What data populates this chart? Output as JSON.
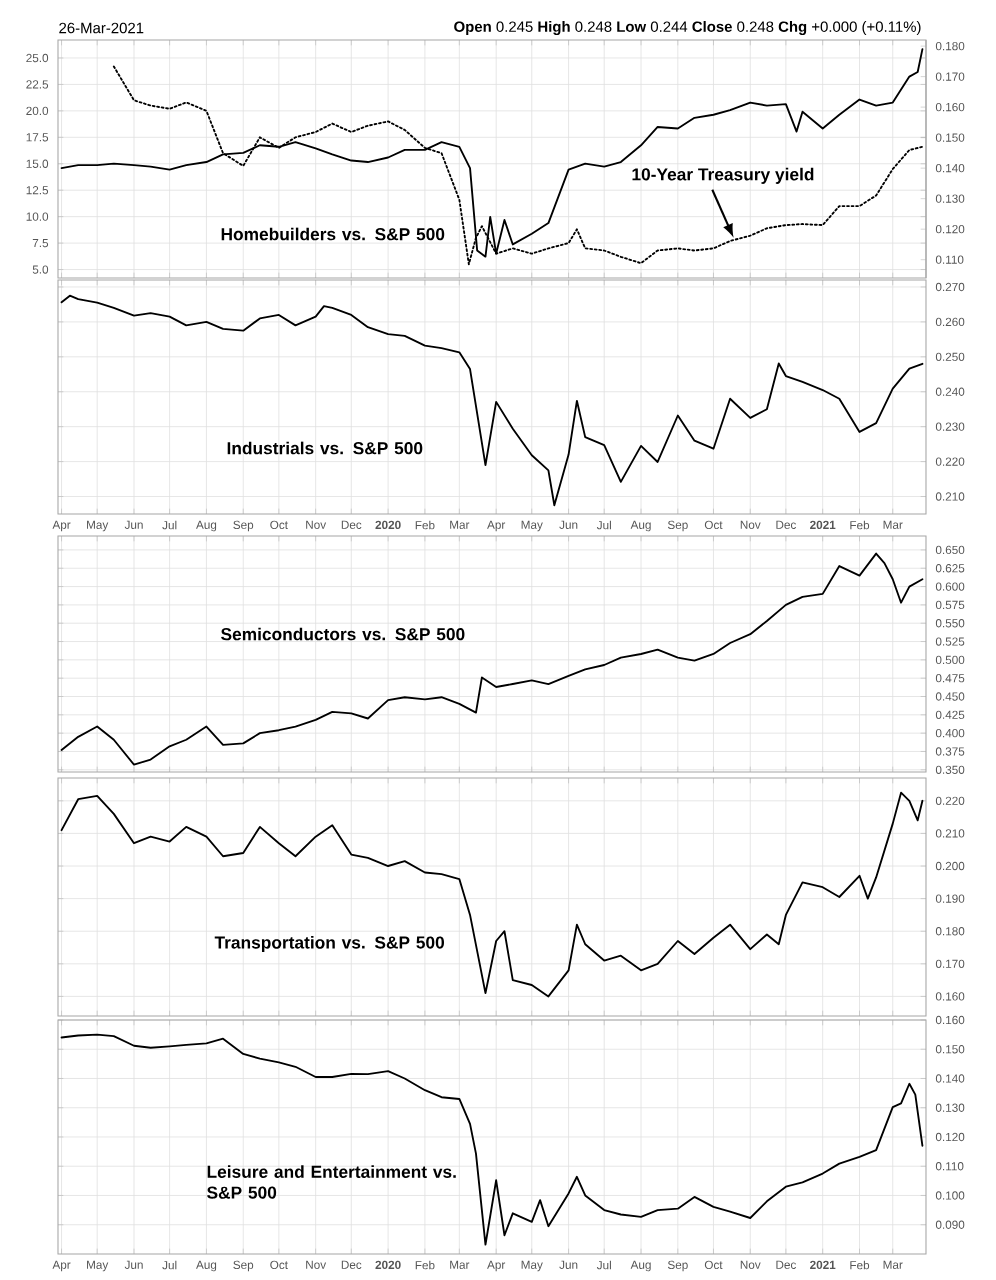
{
  "chart_data": [
    {
      "type": "line",
      "grid": true,
      "tick_labels": "y",
      "marker": "none",
      "annotations": [
        "26-Mar-2021",
        "**Open** 0.245 **High** 0.248 **Low** 0.244 **Close** 0.248 **Chg** +0.000 (+0.11%)",
        "Homebuilders vs. S&P 500",
        {
          "text": "10-Year Treasury yield",
          "x": "2020-10-18",
          "y": 8.0
        }
      ],
      "xlim": [
        "2019-03-29",
        "2021-03-29"
      ],
      "xticks": [
        {
          "value": "2019-04-01",
          "label": null
        },
        {
          "value": "2019-05-01",
          "label": null
        },
        {
          "value": "2019-06-01",
          "label": null
        },
        {
          "value": "2019-07-01",
          "label": null
        },
        {
          "value": "2019-08-01",
          "label": null
        },
        {
          "value": "2019-09-01",
          "label": null
        },
        {
          "value": "2019-10-01",
          "label": null
        },
        {
          "value": "2019-11-01",
          "label": null
        },
        {
          "value": "2019-12-01",
          "label": null
        },
        {
          "value": "2020-01-01",
          "label": null
        },
        {
          "value": "2020-02-01",
          "label": null
        },
        {
          "value": "2020-03-01",
          "label": null
        },
        {
          "value": "2020-04-01",
          "label": null
        },
        {
          "value": "2020-05-01",
          "label": null
        },
        {
          "value": "2020-06-01",
          "label": null
        },
        {
          "value": "2020-07-01",
          "label": null
        },
        {
          "value": "2020-08-01",
          "label": null
        },
        {
          "value": "2020-09-01",
          "label": null
        },
        {
          "value": "2020-10-01",
          "label": null
        },
        {
          "value": "2020-11-01",
          "label": null
        },
        {
          "value": "2020-12-01",
          "label": null
        },
        {
          "value": "2021-01-01",
          "label": null
        },
        {
          "value": "2021-02-01",
          "label": null
        },
        {
          "value": "2021-03-01",
          "label": null
        }
      ],
      "ylim": [
        4.2,
        26.7
      ],
      "yticks": [
        {
          "value": 5,
          "label": "5.0"
        },
        {
          "value": 7.5,
          "label": "7.5"
        },
        {
          "value": 10,
          "label": "10.0"
        },
        {
          "value": 12.5,
          "label": "12.5"
        },
        {
          "value": 15,
          "label": "15.0"
        },
        {
          "value": 17.5,
          "label": "17.5"
        },
        {
          "value": 20,
          "label": "20.0"
        },
        {
          "value": 22.5,
          "label": "22.5"
        },
        {
          "value": 25,
          "label": "25.0"
        }
      ],
      "y2lim": [
        0.104,
        0.182
      ],
      "y2ticks": [
        {
          "value": 0.11,
          "label": "0.110"
        },
        {
          "value": 0.12,
          "label": "0.120"
        },
        {
          "value": 0.13,
          "label": "0.130"
        },
        {
          "value": 0.14,
          "label": "0.140"
        },
        {
          "value": 0.15,
          "label": "0.150"
        },
        {
          "value": 0.16,
          "label": "0.160"
        },
        {
          "value": 0.17,
          "label": "0.170"
        },
        {
          "value": 0.18,
          "label": "0.180"
        }
      ],
      "series": [
        {
          "color": "#000000",
          "axis": "y2",
          "line_style": "solid",
          "x": [
            "2019-04-01",
            "2019-04-15",
            "2019-05-01",
            "2019-05-15",
            "2019-06-01",
            "2019-06-15",
            "2019-07-01",
            "2019-07-15",
            "2019-08-01",
            "2019-08-15",
            "2019-09-01",
            "2019-09-15",
            "2019-10-01",
            "2019-10-15",
            "2019-11-01",
            "2019-11-15",
            "2019-12-01",
            "2019-12-15",
            "2020-01-01",
            "2020-01-15",
            "2020-02-01",
            "2020-02-15",
            "2020-03-01",
            "2020-03-10",
            "2020-03-16",
            "2020-03-23",
            "2020-03-27",
            "2020-04-01",
            "2020-04-08",
            "2020-04-15",
            "2020-05-01",
            "2020-05-15",
            "2020-06-01",
            "2020-06-15",
            "2020-07-01",
            "2020-07-15",
            "2020-08-01",
            "2020-08-15",
            "2020-09-01",
            "2020-09-15",
            "2020-10-01",
            "2020-10-15",
            "2020-11-01",
            "2020-11-15",
            "2020-12-01",
            "2020-12-10",
            "2020-12-15",
            "2021-01-01",
            "2021-01-15",
            "2021-02-01",
            "2021-02-15",
            "2021-03-01",
            "2021-03-15",
            "2021-03-22",
            "2021-03-26"
          ],
          "values": [
            0.14,
            0.141,
            0.141,
            0.1415,
            0.141,
            0.1405,
            0.1395,
            0.141,
            0.142,
            0.1445,
            0.145,
            0.1475,
            0.147,
            0.1485,
            0.1465,
            0.1445,
            0.1425,
            0.142,
            0.1435,
            0.146,
            0.146,
            0.1485,
            0.147,
            0.14,
            0.113,
            0.111,
            0.124,
            0.112,
            0.123,
            0.115,
            0.1185,
            0.122,
            0.1395,
            0.1415,
            0.1405,
            0.142,
            0.1475,
            0.1535,
            0.153,
            0.1565,
            0.1575,
            0.159,
            0.1615,
            0.1605,
            0.161,
            0.152,
            0.1585,
            0.153,
            0.1575,
            0.1625,
            0.1605,
            0.1615,
            0.17,
            0.1715,
            0.179
          ]
        },
        {
          "color": "#000000",
          "line_style": "dotted",
          "x": [
            "2019-05-15",
            "2019-06-01",
            "2019-06-15",
            "2019-07-01",
            "2019-07-15",
            "2019-08-01",
            "2019-08-15",
            "2019-09-01",
            "2019-09-15",
            "2019-10-01",
            "2019-10-15",
            "2019-11-01",
            "2019-11-15",
            "2019-12-01",
            "2019-12-15",
            "2020-01-01",
            "2020-01-15",
            "2020-02-01",
            "2020-02-15",
            "2020-03-01",
            "2020-03-09",
            "2020-03-15",
            "2020-03-20",
            "2020-04-01",
            "2020-04-15",
            "2020-05-01",
            "2020-05-15",
            "2020-06-01",
            "2020-06-08",
            "2020-06-15",
            "2020-07-01",
            "2020-07-15",
            "2020-08-01",
            "2020-08-15",
            "2020-09-01",
            "2020-09-15",
            "2020-10-01",
            "2020-10-15",
            "2020-11-01",
            "2020-11-15",
            "2020-12-01",
            "2020-12-15",
            "2021-01-01",
            "2021-01-15",
            "2021-02-01",
            "2021-02-15",
            "2021-03-01",
            "2021-03-15",
            "2021-03-26"
          ],
          "values": [
            24.2,
            21.0,
            20.5,
            20.2,
            20.8,
            20.0,
            16.0,
            14.8,
            17.5,
            16.5,
            17.5,
            18.0,
            18.8,
            18.0,
            18.6,
            19.0,
            18.2,
            16.5,
            16.0,
            11.6,
            5.5,
            8.0,
            9.1,
            6.5,
            7.0,
            6.5,
            7.0,
            7.5,
            8.8,
            7.0,
            6.8,
            6.2,
            5.6,
            6.8,
            7.0,
            6.8,
            7.0,
            7.7,
            8.2,
            8.9,
            9.2,
            9.3,
            9.2,
            11.0,
            11.0,
            12.0,
            14.5,
            16.3,
            16.6
          ]
        }
      ]
    },
    {
      "type": "line",
      "grid": true,
      "marker": "none",
      "annotations": [
        "Industrials vs. S&P 500"
      ],
      "xlim": [
        "2019-03-29",
        "2021-03-29"
      ],
      "xticks": [
        {
          "value": "2019-04-01",
          "label": "Apr"
        },
        {
          "value": "2019-05-01",
          "label": "May"
        },
        {
          "value": "2019-06-01",
          "label": "Jun"
        },
        {
          "value": "2019-07-01",
          "label": "Jul"
        },
        {
          "value": "2019-08-01",
          "label": "Aug"
        },
        {
          "value": "2019-09-01",
          "label": "Sep"
        },
        {
          "value": "2019-10-01",
          "label": "Oct"
        },
        {
          "value": "2019-11-01",
          "label": "Nov"
        },
        {
          "value": "2019-12-01",
          "label": "Dec"
        },
        {
          "value": "2020-01-01",
          "label": "2020"
        },
        {
          "value": "2020-02-01",
          "label": "Feb"
        },
        {
          "value": "2020-03-01",
          "label": "Mar"
        },
        {
          "value": "2020-04-01",
          "label": "Apr"
        },
        {
          "value": "2020-05-01",
          "label": "May"
        },
        {
          "value": "2020-06-01",
          "label": "Jun"
        },
        {
          "value": "2020-07-01",
          "label": "Jul"
        },
        {
          "value": "2020-08-01",
          "label": "Aug"
        },
        {
          "value": "2020-09-01",
          "label": "Sep"
        },
        {
          "value": "2020-10-01",
          "label": "Oct"
        },
        {
          "value": "2020-11-01",
          "label": "Nov"
        },
        {
          "value": "2020-12-01",
          "label": "Dec"
        },
        {
          "value": "2021-01-01",
          "label": "2021"
        },
        {
          "value": "2021-02-01",
          "label": "Feb"
        },
        {
          "value": "2021-03-01",
          "label": "Mar"
        }
      ],
      "ylim": [
        0.205,
        0.272
      ],
      "yticks": [
        {
          "value": 0.21,
          "label": "0.210"
        },
        {
          "value": 0.22,
          "label": "0.220"
        },
        {
          "value": 0.23,
          "label": "0.230"
        },
        {
          "value": 0.24,
          "label": "0.240"
        },
        {
          "value": 0.25,
          "label": "0.250"
        },
        {
          "value": 0.26,
          "label": "0.260"
        },
        {
          "value": 0.27,
          "label": "0.270"
        }
      ],
      "series": [
        {
          "color": "#000000",
          "line_style": "solid",
          "x": [
            "2019-04-01",
            "2019-04-08",
            "2019-04-15",
            "2019-05-01",
            "2019-05-15",
            "2019-06-01",
            "2019-06-15",
            "2019-07-01",
            "2019-07-15",
            "2019-08-01",
            "2019-08-15",
            "2019-09-01",
            "2019-09-15",
            "2019-10-01",
            "2019-10-15",
            "2019-11-01",
            "2019-11-08",
            "2019-11-15",
            "2019-12-01",
            "2019-12-15",
            "2020-01-01",
            "2020-01-15",
            "2020-02-01",
            "2020-02-15",
            "2020-03-01",
            "2020-03-10",
            "2020-03-23",
            "2020-04-01",
            "2020-04-15",
            "2020-05-01",
            "2020-05-15",
            "2020-05-20",
            "2020-06-01",
            "2020-06-08",
            "2020-06-15",
            "2020-07-01",
            "2020-07-15",
            "2020-08-01",
            "2020-08-15",
            "2020-09-01",
            "2020-09-15",
            "2020-10-01",
            "2020-10-15",
            "2020-11-01",
            "2020-11-15",
            "2020-11-25",
            "2020-12-01",
            "2020-12-15",
            "2021-01-01",
            "2021-01-15",
            "2021-02-01",
            "2021-02-15",
            "2021-03-01",
            "2021-03-15",
            "2021-03-26"
          ],
          "values": [
            0.2656,
            0.2675,
            0.2665,
            0.2655,
            0.264,
            0.2618,
            0.2625,
            0.2615,
            0.259,
            0.26,
            0.258,
            0.2575,
            0.261,
            0.262,
            0.259,
            0.2615,
            0.2645,
            0.264,
            0.262,
            0.2585,
            0.2565,
            0.256,
            0.2532,
            0.2525,
            0.2513,
            0.2465,
            0.219,
            0.2371,
            0.2294,
            0.2218,
            0.2175,
            0.2075,
            0.222,
            0.2374,
            0.227,
            0.2247,
            0.2142,
            0.2245,
            0.2199,
            0.2332,
            0.226,
            0.2237,
            0.238,
            0.2325,
            0.235,
            0.2481,
            0.2445,
            0.2428,
            0.2405,
            0.238,
            0.2285,
            0.231,
            0.2409,
            0.2466,
            0.248
          ]
        }
      ]
    },
    {
      "type": "line",
      "grid": true,
      "tick_labels": "y",
      "marker": "none",
      "annotations": [
        "Semiconductors vs. S&P 500"
      ],
      "xlim": [
        "2019-03-29",
        "2021-03-29"
      ],
      "xticks": [
        {
          "value": "2019-04-01",
          "label": null
        },
        {
          "value": "2019-05-01",
          "label": null
        },
        {
          "value": "2019-06-01",
          "label": null
        },
        {
          "value": "2019-07-01",
          "label": null
        },
        {
          "value": "2019-08-01",
          "label": null
        },
        {
          "value": "2019-09-01",
          "label": null
        },
        {
          "value": "2019-10-01",
          "label": null
        },
        {
          "value": "2019-11-01",
          "label": null
        },
        {
          "value": "2019-12-01",
          "label": null
        },
        {
          "value": "2020-01-01",
          "label": null
        },
        {
          "value": "2020-02-01",
          "label": null
        },
        {
          "value": "2020-03-01",
          "label": null
        },
        {
          "value": "2020-04-01",
          "label": null
        },
        {
          "value": "2020-05-01",
          "label": null
        },
        {
          "value": "2020-06-01",
          "label": null
        },
        {
          "value": "2020-07-01",
          "label": null
        },
        {
          "value": "2020-08-01",
          "label": null
        },
        {
          "value": "2020-09-01",
          "label": null
        },
        {
          "value": "2020-10-01",
          "label": null
        },
        {
          "value": "2020-11-01",
          "label": null
        },
        {
          "value": "2020-12-01",
          "label": null
        },
        {
          "value": "2021-01-01",
          "label": null
        },
        {
          "value": "2021-02-01",
          "label": null
        },
        {
          "value": "2021-03-01",
          "label": null
        }
      ],
      "ylim": [
        0.347,
        0.669
      ],
      "yticks": [
        {
          "value": 0.35,
          "label": "0.350"
        },
        {
          "value": 0.375,
          "label": "0.375"
        },
        {
          "value": 0.4,
          "label": "0.400"
        },
        {
          "value": 0.425,
          "label": "0.425"
        },
        {
          "value": 0.45,
          "label": "0.450"
        },
        {
          "value": 0.475,
          "label": "0.475"
        },
        {
          "value": 0.5,
          "label": "0.500"
        },
        {
          "value": 0.525,
          "label": "0.525"
        },
        {
          "value": 0.55,
          "label": "0.550"
        },
        {
          "value": 0.575,
          "label": "0.575"
        },
        {
          "value": 0.6,
          "label": "0.600"
        },
        {
          "value": 0.625,
          "label": "0.625"
        },
        {
          "value": 0.65,
          "label": "0.650"
        }
      ],
      "series": [
        {
          "color": "#000000",
          "line_style": "solid",
          "x": [
            "2019-04-01",
            "2019-04-15",
            "2019-05-01",
            "2019-05-15",
            "2019-06-01",
            "2019-06-15",
            "2019-07-01",
            "2019-07-15",
            "2019-08-01",
            "2019-08-15",
            "2019-09-01",
            "2019-09-15",
            "2019-10-01",
            "2019-10-15",
            "2019-11-01",
            "2019-11-15",
            "2019-12-01",
            "2019-12-15",
            "2020-01-01",
            "2020-01-15",
            "2020-02-01",
            "2020-02-15",
            "2020-03-01",
            "2020-03-15",
            "2020-03-20",
            "2020-04-01",
            "2020-04-15",
            "2020-05-01",
            "2020-05-15",
            "2020-06-01",
            "2020-06-15",
            "2020-07-01",
            "2020-07-15",
            "2020-08-01",
            "2020-08-15",
            "2020-09-01",
            "2020-09-15",
            "2020-10-01",
            "2020-10-15",
            "2020-11-01",
            "2020-11-15",
            "2020-12-01",
            "2020-12-15",
            "2021-01-01",
            "2021-01-15",
            "2021-02-01",
            "2021-02-15",
            "2021-02-22",
            "2021-03-01",
            "2021-03-08",
            "2021-03-15",
            "2021-03-26"
          ],
          "values": [
            0.377,
            0.395,
            0.409,
            0.391,
            0.357,
            0.364,
            0.382,
            0.391,
            0.409,
            0.384,
            0.386,
            0.4,
            0.404,
            0.409,
            0.418,
            0.429,
            0.427,
            0.42,
            0.445,
            0.449,
            0.446,
            0.449,
            0.44,
            0.428,
            0.476,
            0.463,
            0.467,
            0.472,
            0.467,
            0.478,
            0.487,
            0.493,
            0.503,
            0.508,
            0.514,
            0.503,
            0.499,
            0.508,
            0.523,
            0.535,
            0.553,
            0.575,
            0.586,
            0.59,
            0.628,
            0.615,
            0.645,
            0.632,
            0.61,
            0.578,
            0.6,
            0.61
          ]
        }
      ]
    },
    {
      "type": "line",
      "grid": true,
      "tick_labels": "y",
      "marker": "none",
      "annotations": [
        "Transportation vs. S&P 500"
      ],
      "xlim": [
        "2019-03-29",
        "2021-03-29"
      ],
      "xticks": [
        {
          "value": "2019-04-01",
          "label": null
        },
        {
          "value": "2019-05-01",
          "label": null
        },
        {
          "value": "2019-06-01",
          "label": null
        },
        {
          "value": "2019-07-01",
          "label": null
        },
        {
          "value": "2019-08-01",
          "label": null
        },
        {
          "value": "2019-09-01",
          "label": null
        },
        {
          "value": "2019-10-01",
          "label": null
        },
        {
          "value": "2019-11-01",
          "label": null
        },
        {
          "value": "2019-12-01",
          "label": null
        },
        {
          "value": "2020-01-01",
          "label": null
        },
        {
          "value": "2020-02-01",
          "label": null
        },
        {
          "value": "2020-03-01",
          "label": null
        },
        {
          "value": "2020-04-01",
          "label": null
        },
        {
          "value": "2020-05-01",
          "label": null
        },
        {
          "value": "2020-06-01",
          "label": null
        },
        {
          "value": "2020-07-01",
          "label": null
        },
        {
          "value": "2020-08-01",
          "label": null
        },
        {
          "value": "2020-09-01",
          "label": null
        },
        {
          "value": "2020-10-01",
          "label": null
        },
        {
          "value": "2020-11-01",
          "label": null
        },
        {
          "value": "2020-12-01",
          "label": null
        },
        {
          "value": "2021-01-01",
          "label": null
        },
        {
          "value": "2021-02-01",
          "label": null
        },
        {
          "value": "2021-03-01",
          "label": null
        }
      ],
      "ylim": [
        0.154,
        0.227
      ],
      "yticks": [
        {
          "value": 0.16,
          "label": "0.160"
        },
        {
          "value": 0.17,
          "label": "0.170"
        },
        {
          "value": 0.18,
          "label": "0.180"
        },
        {
          "value": 0.19,
          "label": "0.190"
        },
        {
          "value": 0.2,
          "label": "0.200"
        },
        {
          "value": 0.21,
          "label": "0.210"
        },
        {
          "value": 0.22,
          "label": "0.220"
        }
      ],
      "series": [
        {
          "color": "#000000",
          "line_style": "solid",
          "x": [
            "2019-04-01",
            "2019-04-15",
            "2019-05-01",
            "2019-05-15",
            "2019-06-01",
            "2019-06-15",
            "2019-07-01",
            "2019-07-15",
            "2019-08-01",
            "2019-08-15",
            "2019-09-01",
            "2019-09-15",
            "2019-10-01",
            "2019-10-15",
            "2019-11-01",
            "2019-11-15",
            "2019-12-01",
            "2019-12-15",
            "2020-01-01",
            "2020-01-15",
            "2020-02-01",
            "2020-02-15",
            "2020-03-01",
            "2020-03-10",
            "2020-03-23",
            "2020-04-01",
            "2020-04-08",
            "2020-04-15",
            "2020-05-01",
            "2020-05-15",
            "2020-06-01",
            "2020-06-08",
            "2020-06-15",
            "2020-07-01",
            "2020-07-15",
            "2020-08-01",
            "2020-08-15",
            "2020-09-01",
            "2020-09-15",
            "2020-10-01",
            "2020-10-15",
            "2020-11-01",
            "2020-11-15",
            "2020-11-25",
            "2020-12-01",
            "2020-12-15",
            "2021-01-01",
            "2021-01-15",
            "2021-02-01",
            "2021-02-08",
            "2021-02-15",
            "2021-03-01",
            "2021-03-08",
            "2021-03-15",
            "2021-03-22",
            "2021-03-26"
          ],
          "values": [
            0.211,
            0.2205,
            0.2215,
            0.216,
            0.207,
            0.209,
            0.2075,
            0.212,
            0.209,
            0.203,
            0.204,
            0.212,
            0.207,
            0.203,
            0.209,
            0.2125,
            0.2035,
            0.2025,
            0.2,
            0.2015,
            0.198,
            0.1975,
            0.196,
            0.185,
            0.161,
            0.177,
            0.18,
            0.165,
            0.1635,
            0.16,
            0.168,
            0.182,
            0.176,
            0.171,
            0.1725,
            0.168,
            0.17,
            0.177,
            0.173,
            0.178,
            0.182,
            0.1745,
            0.179,
            0.176,
            0.185,
            0.195,
            0.1935,
            0.1905,
            0.197,
            0.19,
            0.1965,
            0.213,
            0.2225,
            0.22,
            0.214,
            0.22
          ]
        }
      ]
    },
    {
      "type": "line",
      "grid": true,
      "marker": "none",
      "annotations": [
        "Leisure and Entertainment vs. S&P 500"
      ],
      "xlim": [
        "2019-03-29",
        "2021-03-29"
      ],
      "xticks": [
        {
          "value": "2019-04-01",
          "label": "Apr"
        },
        {
          "value": "2019-05-01",
          "label": "May"
        },
        {
          "value": "2019-06-01",
          "label": "Jun"
        },
        {
          "value": "2019-07-01",
          "label": "Jul"
        },
        {
          "value": "2019-08-01",
          "label": "Aug"
        },
        {
          "value": "2019-09-01",
          "label": "Sep"
        },
        {
          "value": "2019-10-01",
          "label": "Oct"
        },
        {
          "value": "2019-11-01",
          "label": "Nov"
        },
        {
          "value": "2019-12-01",
          "label": "Dec"
        },
        {
          "value": "2020-01-01",
          "label": "2020"
        },
        {
          "value": "2020-02-01",
          "label": "Feb"
        },
        {
          "value": "2020-03-01",
          "label": "Mar"
        },
        {
          "value": "2020-04-01",
          "label": "Apr"
        },
        {
          "value": "2020-05-01",
          "label": "May"
        },
        {
          "value": "2020-06-01",
          "label": "Jun"
        },
        {
          "value": "2020-07-01",
          "label": "Jul"
        },
        {
          "value": "2020-08-01",
          "label": "Aug"
        },
        {
          "value": "2020-09-01",
          "label": "Sep"
        },
        {
          "value": "2020-10-01",
          "label": "Oct"
        },
        {
          "value": "2020-11-01",
          "label": "Nov"
        },
        {
          "value": "2020-12-01",
          "label": "Dec"
        },
        {
          "value": "2021-01-01",
          "label": "2021"
        },
        {
          "value": "2021-02-01",
          "label": "Feb"
        },
        {
          "value": "2021-03-01",
          "label": "Mar"
        }
      ],
      "ylim": [
        0.08,
        0.16
      ],
      "yticks": [
        {
          "value": 0.09,
          "label": "0.090"
        },
        {
          "value": 0.1,
          "label": "0.100"
        },
        {
          "value": 0.11,
          "label": "0.110"
        },
        {
          "value": 0.12,
          "label": "0.120"
        },
        {
          "value": 0.13,
          "label": "0.130"
        },
        {
          "value": 0.14,
          "label": "0.140"
        },
        {
          "value": 0.15,
          "label": "0.150"
        },
        {
          "value": 0.16,
          "label": "0.160"
        }
      ],
      "series": [
        {
          "color": "#000000",
          "line_style": "solid",
          "x": [
            "2019-04-01",
            "2019-04-15",
            "2019-05-01",
            "2019-05-15",
            "2019-06-01",
            "2019-06-15",
            "2019-07-01",
            "2019-07-15",
            "2019-08-01",
            "2019-08-15",
            "2019-09-01",
            "2019-09-15",
            "2019-10-01",
            "2019-10-15",
            "2019-11-01",
            "2019-11-15",
            "2019-12-01",
            "2019-12-15",
            "2020-01-01",
            "2020-01-15",
            "2020-02-01",
            "2020-02-15",
            "2020-03-01",
            "2020-03-10",
            "2020-03-15",
            "2020-03-23",
            "2020-04-01",
            "2020-04-08",
            "2020-04-15",
            "2020-05-01",
            "2020-05-08",
            "2020-05-15",
            "2020-06-01",
            "2020-06-08",
            "2020-06-15",
            "2020-07-01",
            "2020-07-15",
            "2020-08-01",
            "2020-08-15",
            "2020-09-01",
            "2020-09-15",
            "2020-10-01",
            "2020-10-15",
            "2020-11-01",
            "2020-11-15",
            "2020-12-01",
            "2020-12-15",
            "2021-01-01",
            "2021-01-15",
            "2021-02-01",
            "2021-02-15",
            "2021-03-01",
            "2021-03-08",
            "2021-03-15",
            "2021-03-20",
            "2021-03-26"
          ],
          "values": [
            0.154,
            0.1547,
            0.155,
            0.1545,
            0.1512,
            0.1505,
            0.151,
            0.1515,
            0.152,
            0.1536,
            0.1484,
            0.1468,
            0.1455,
            0.144,
            0.1405,
            0.1405,
            0.1416,
            0.1415,
            0.1425,
            0.14,
            0.136,
            0.1336,
            0.133,
            0.1245,
            0.1143,
            0.0832,
            0.1052,
            0.0864,
            0.0939,
            0.091,
            0.0984,
            0.0895,
            0.1007,
            0.1064,
            0.1,
            0.095,
            0.0935,
            0.0927,
            0.095,
            0.0955,
            0.0995,
            0.0961,
            0.0945,
            0.0923,
            0.098,
            0.103,
            0.1045,
            0.1075,
            0.1109,
            0.1132,
            0.1155,
            0.1302,
            0.1315,
            0.1382,
            0.1345,
            0.117
          ]
        }
      ]
    }
  ]
}
